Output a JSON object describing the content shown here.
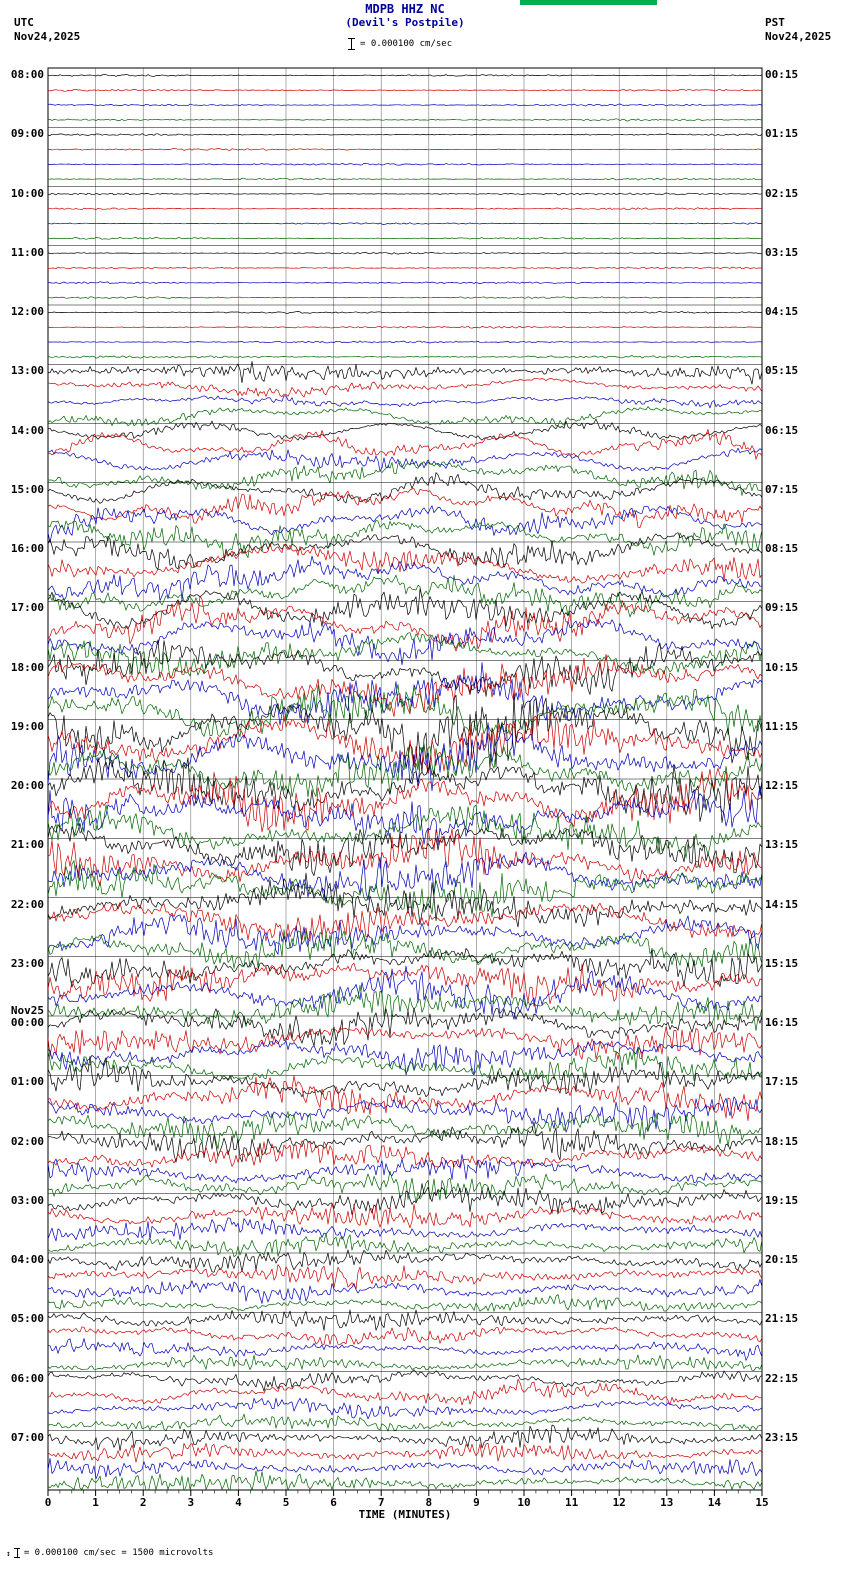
{
  "header": {
    "title": "MDPB HHZ NC",
    "subtitle": "(Devil's Postpile)",
    "tz_left": "UTC",
    "date_left": "Nov24,2025",
    "tz_right": "PST",
    "date_right": "Nov24,2025",
    "scale_label": "= 0.000100 cm/sec"
  },
  "icons": {
    "amplitude_arrows": "↕"
  },
  "footer": {
    "note": "= 0.000100 cm/sec =    1500 microvolts",
    "xlabel": "TIME (MINUTES)"
  },
  "chart_data": {
    "type": "line",
    "title": "MDPB HHZ NC (Devil's Postpile) helicorder",
    "xlabel": "TIME (MINUTES)",
    "x_ticks": [
      0,
      1,
      2,
      3,
      4,
      5,
      6,
      7,
      8,
      9,
      10,
      11,
      12,
      13,
      14,
      15
    ],
    "minutes_per_line": 15,
    "lines_per_hour": 4,
    "trace_colors": [
      "#000000",
      "#cc0000",
      "#0000bb",
      "#006600"
    ],
    "grid_color": "#777777",
    "rows": [
      {
        "utc": "08:00",
        "pst": "00:15",
        "amps": [
          0.4,
          0.4,
          0.4,
          0.4
        ],
        "drift": [
          0,
          0,
          0,
          0
        ]
      },
      {
        "utc": "09:00",
        "pst": "01:15",
        "amps": [
          0.4,
          0.4,
          0.4,
          0.4
        ],
        "drift": [
          0,
          0,
          0,
          0
        ]
      },
      {
        "utc": "10:00",
        "pst": "02:15",
        "amps": [
          0.4,
          0.4,
          0.4,
          0.4
        ],
        "drift": [
          0,
          0,
          0,
          0
        ]
      },
      {
        "utc": "11:00",
        "pst": "03:15",
        "amps": [
          0.4,
          0.4,
          0.4,
          0.4
        ],
        "drift": [
          0,
          0,
          0,
          0
        ]
      },
      {
        "utc": "12:00",
        "pst": "04:15",
        "amps": [
          0.4,
          0.4,
          0.4,
          0.5
        ],
        "drift": [
          0,
          0,
          0,
          0
        ]
      },
      {
        "utc": "13:00",
        "pst": "05:15",
        "amps": [
          4,
          2,
          1.5,
          2
        ],
        "drift": [
          2,
          7,
          4,
          9
        ]
      },
      {
        "utc": "14:00",
        "pst": "06:15",
        "amps": [
          2,
          3,
          3,
          4
        ],
        "drift": [
          7,
          11,
          9,
          13
        ]
      },
      {
        "utc": "15:00",
        "pst": "07:15",
        "amps": [
          3,
          4,
          4,
          5
        ],
        "drift": [
          11,
          14,
          12,
          13
        ]
      },
      {
        "utc": "16:00",
        "pst": "08:15",
        "amps": [
          5,
          5,
          5,
          5
        ],
        "drift": [
          14,
          16,
          15,
          14
        ]
      },
      {
        "utc": "17:00",
        "pst": "09:15",
        "amps": [
          6,
          6,
          6,
          6
        ],
        "drift": [
          16,
          18,
          16,
          16
        ]
      },
      {
        "utc": "18:00",
        "pst": "10:15",
        "amps": [
          7,
          7,
          8,
          9
        ],
        "drift": [
          18,
          19,
          18,
          18
        ]
      },
      {
        "utc": "19:00",
        "pst": "11:15",
        "amps": [
          10,
          9,
          9,
          8
        ],
        "drift": [
          19,
          19,
          18,
          17
        ],
        "burst": {
          "q": 0,
          "x0": 7.2,
          "x1": 11.2,
          "amp": 26
        }
      },
      {
        "utc": "20:00",
        "pst": "12:15",
        "amps": [
          9,
          9,
          8,
          8
        ],
        "drift": [
          18,
          17,
          16,
          16
        ]
      },
      {
        "utc": "21:00",
        "pst": "13:15",
        "amps": [
          8,
          8,
          8,
          8
        ],
        "drift": [
          16,
          16,
          15,
          14
        ]
      },
      {
        "utc": "22:00",
        "pst": "14:15",
        "amps": [
          8,
          7,
          7,
          7
        ],
        "drift": [
          14,
          14,
          12,
          12
        ]
      },
      {
        "utc": "23:00",
        "pst": "15:15",
        "amps": [
          7,
          7,
          7,
          7
        ],
        "drift": [
          12,
          12,
          12,
          11
        ]
      },
      {
        "utc": "00:00",
        "pst": "16:15",
        "date": "Nov25",
        "amps": [
          7,
          6,
          6,
          6
        ],
        "drift": [
          11,
          10,
          10,
          10
        ]
      },
      {
        "utc": "01:00",
        "pst": "17:15",
        "amps": [
          6,
          6,
          6,
          6
        ],
        "drift": [
          10,
          10,
          9,
          8
        ]
      },
      {
        "utc": "02:00",
        "pst": "18:15",
        "amps": [
          6,
          5,
          5,
          5
        ],
        "drift": [
          8,
          8,
          8,
          7
        ]
      },
      {
        "utc": "03:00",
        "pst": "19:15",
        "amps": [
          5,
          5,
          4,
          4
        ],
        "drift": [
          7,
          6,
          6,
          6
        ]
      },
      {
        "utc": "04:00",
        "pst": "20:15",
        "amps": [
          4,
          4,
          4,
          3
        ],
        "drift": [
          5,
          4,
          4,
          4
        ]
      },
      {
        "utc": "05:00",
        "pst": "21:15",
        "amps": [
          4,
          3,
          3,
          3
        ],
        "drift": [
          4,
          6,
          4,
          4
        ]
      },
      {
        "utc": "06:00",
        "pst": "22:15",
        "amps": [
          3,
          3,
          3,
          3
        ],
        "drift": [
          6,
          8,
          6,
          4
        ]
      },
      {
        "utc": "07:00",
        "pst": "23:15",
        "amps": [
          4,
          4,
          4,
          4
        ],
        "drift": [
          4,
          4,
          4,
          3
        ]
      }
    ]
  }
}
